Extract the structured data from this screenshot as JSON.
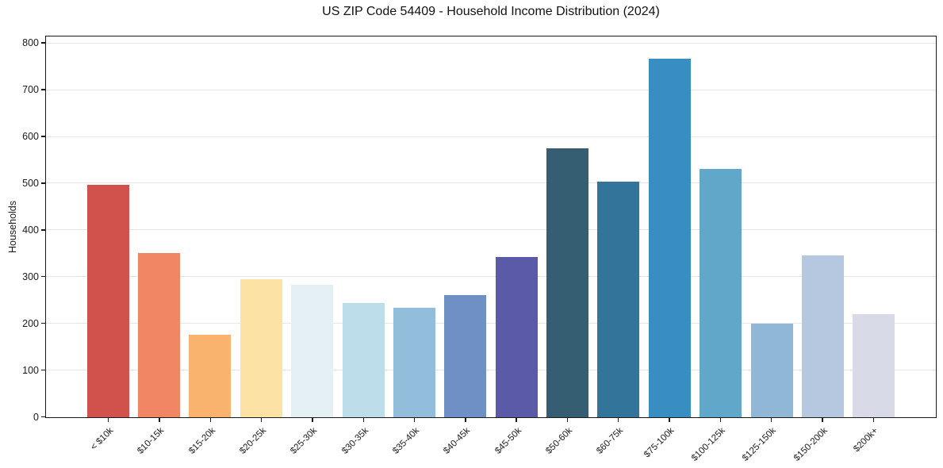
{
  "chart_data": {
    "type": "bar",
    "title": "US ZIP Code 54409 - Household Income Distribution (2024)",
    "xlabel": "",
    "ylabel": "Households",
    "categories": [
      "< $10k",
      "$10-15k",
      "$15-20k",
      "$20-25k",
      "$25-30k",
      "$30-35k",
      "$35-40k",
      "$40-45k",
      "$45-50k",
      "$50-60k",
      "$60-75k",
      "$75-100k",
      "$100-125k",
      "$125-150k",
      "$150-200k",
      "$200k+"
    ],
    "values": [
      498,
      351,
      176,
      295,
      283,
      245,
      235,
      262,
      343,
      576,
      504,
      768,
      531,
      201,
      346,
      221
    ],
    "bar_colors": [
      "#d1524c",
      "#f08663",
      "#f9b36e",
      "#fce3a5",
      "#e4f0f3",
      "#bcdde9",
      "#92bedb",
      "#6e90c5",
      "#5a5aa9",
      "#355e73",
      "#32749a",
      "#388dc1",
      "#61a7ca",
      "#90b7d6",
      "#b6c7e0",
      "#d8dae8"
    ],
    "ylim": [
      0,
      813
    ],
    "yticks": [
      0,
      100,
      200,
      300,
      400,
      500,
      600,
      700,
      800
    ],
    "grid": "horizontal",
    "grid_color": "#e6e6e6",
    "axis_color": "#1a1a1a",
    "text_color": "#1a1a1a",
    "background_color": "#ffffff",
    "legend": "none",
    "x_tick_rotation_deg": 45
  }
}
